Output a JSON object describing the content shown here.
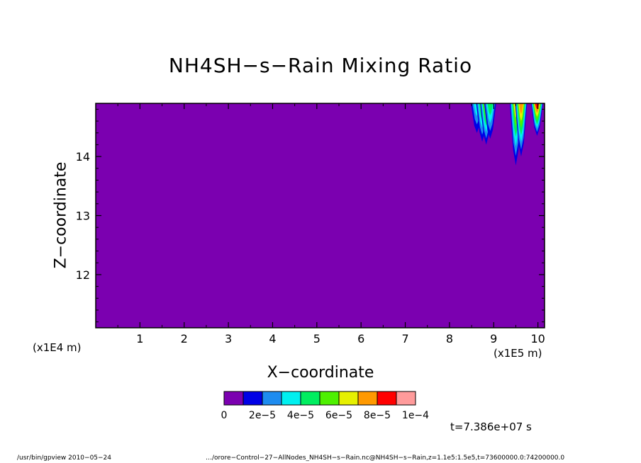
{
  "chart_data": {
    "type": "heatmap",
    "title": "NH4SH−s−Rain Mixing Ratio",
    "xlabel": "X−coordinate",
    "ylabel": "Z−coordinate",
    "x_scale_label": "(x1E5 m)",
    "y_scale_label": "(x1E4 m)",
    "xlim": [
      0,
      10.15
    ],
    "ylim": [
      11.1,
      14.9
    ],
    "x_ticks": [
      1,
      2,
      3,
      4,
      5,
      6,
      7,
      8,
      9,
      10
    ],
    "y_ticks": [
      12,
      13,
      14
    ],
    "background_value": 0,
    "colorbar": {
      "colors": [
        "#7b00b0",
        "#0000e6",
        "#1e8cf0",
        "#00f0f0",
        "#00ee60",
        "#4ef000",
        "#e6f000",
        "#ff9900",
        "#ff0000",
        "#ff9b9b"
      ],
      "labels": [
        "0",
        "2e−5",
        "4e−5",
        "6e−5",
        "8e−5",
        "1e−4"
      ]
    },
    "features": [
      {
        "x": 8.62,
        "z_bottom": 14.4,
        "max_level": 3
      },
      {
        "x": 8.74,
        "z_bottom": 14.25,
        "max_level": 5
      },
      {
        "x": 8.83,
        "z_bottom": 14.2,
        "max_level": 6
      },
      {
        "x": 8.92,
        "z_bottom": 14.3,
        "max_level": 4
      },
      {
        "x": 9.5,
        "z_bottom": 13.85,
        "max_level": 6
      },
      {
        "x": 9.62,
        "z_bottom": 14.0,
        "max_level": 7
      },
      {
        "x": 9.98,
        "z_bottom": 14.35,
        "max_level": 8
      }
    ]
  },
  "time_label": "t=7.386e+07 s",
  "footer_left": "/usr/bin/gpview   2010−05−24",
  "footer_right": "…/orore−Control−27−AllNodes_NH4SH−s−Rain.nc@NH4SH−s−Rain,z=1.1e5:1.5e5,t=73600000.0:74200000.0"
}
